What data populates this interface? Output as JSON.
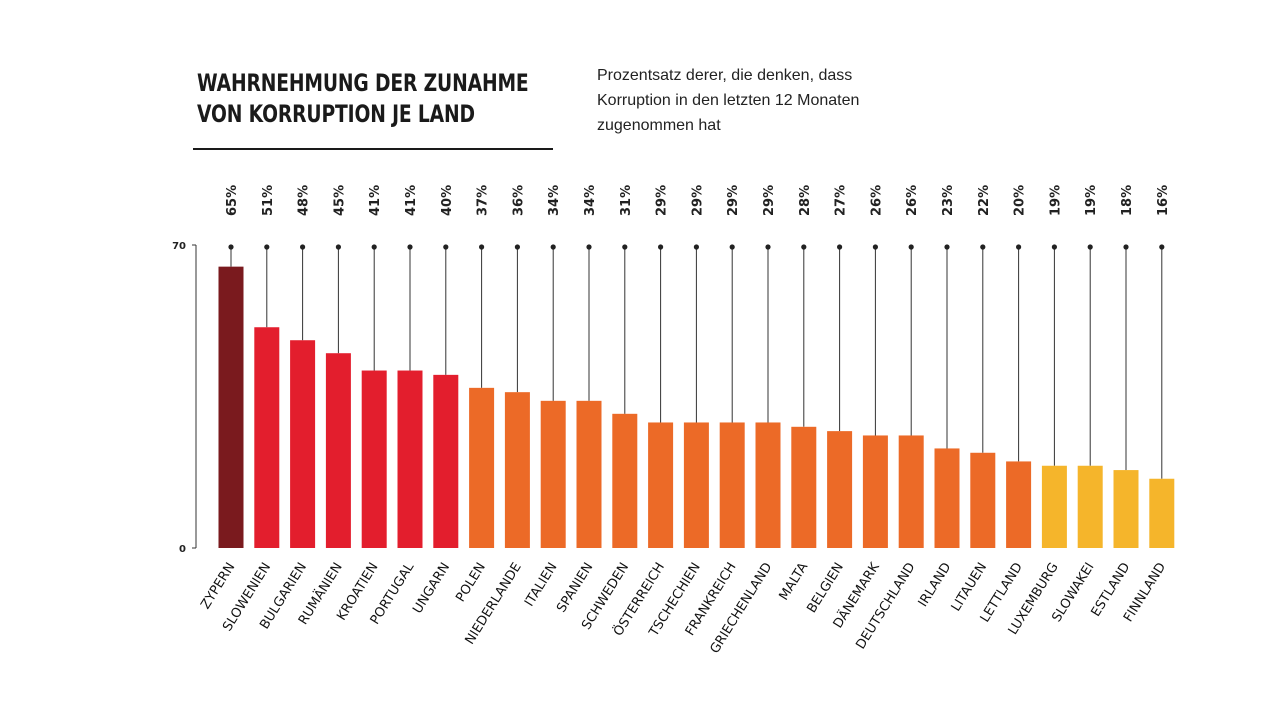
{
  "title_line1": "WAHRNEHMUNG DER ZUNAHME",
  "title_line2": "VON KORRUPTION JE LAND",
  "subtitle": "Prozentsatz derer, die denken, dass Korruption in den letzten 12 Monaten zugenommen hat",
  "colors": {
    "dark": "#7a1a1e",
    "red": "#e31e2d",
    "orange": "#ec6a27",
    "yellow": "#f5b52b",
    "text": "#1a1a1a"
  },
  "chart_data": {
    "type": "bar",
    "title": "WAHRNEHMUNG DER ZUNAHME VON KORRUPTION JE LAND",
    "ylabel": "",
    "xlabel": "",
    "ylim": [
      0,
      70
    ],
    "yticks": [
      "0",
      "70"
    ],
    "categories": [
      "ZYPERN",
      "SLOWENIEN",
      "BULGARIEN",
      "RUMÄNIEN",
      "KROATIEN",
      "PORTUGAL",
      "UNGARN",
      "POLEN",
      "NIEDERLANDE",
      "ITALIEN",
      "SPANIEN",
      "SCHWEDEN",
      "ÖSTERREICH",
      "TSCHECHIEN",
      "FRANKREICH",
      "GRIECHENLAND",
      "MALTA",
      "BELGIEN",
      "DÄNEMARK",
      "DEUTSCHLAND",
      "IRLAND",
      "LITAUEN",
      "LETTLAND",
      "LUXEMBURG",
      "SLOWAKEI",
      "ESTLAND",
      "FINNLAND"
    ],
    "values": [
      65,
      51,
      48,
      45,
      41,
      41,
      40,
      37,
      36,
      34,
      34,
      31,
      29,
      29,
      29,
      29,
      28,
      27,
      26,
      26,
      23,
      22,
      20,
      19,
      19,
      18,
      16
    ],
    "value_labels": [
      "65%",
      "51%",
      "48%",
      "45%",
      "41%",
      "41%",
      "40%",
      "37%",
      "36%",
      "34%",
      "34%",
      "31%",
      "29%",
      "29%",
      "29%",
      "29%",
      "28%",
      "27%",
      "26%",
      "26%",
      "23%",
      "22%",
      "20%",
      "19%",
      "19%",
      "18%",
      "16%"
    ],
    "color_groups": [
      "dark",
      "red",
      "red",
      "red",
      "red",
      "red",
      "red",
      "orange",
      "orange",
      "orange",
      "orange",
      "orange",
      "orange",
      "orange",
      "orange",
      "orange",
      "orange",
      "orange",
      "orange",
      "orange",
      "orange",
      "orange",
      "orange",
      "yellow",
      "yellow",
      "yellow",
      "yellow"
    ]
  }
}
